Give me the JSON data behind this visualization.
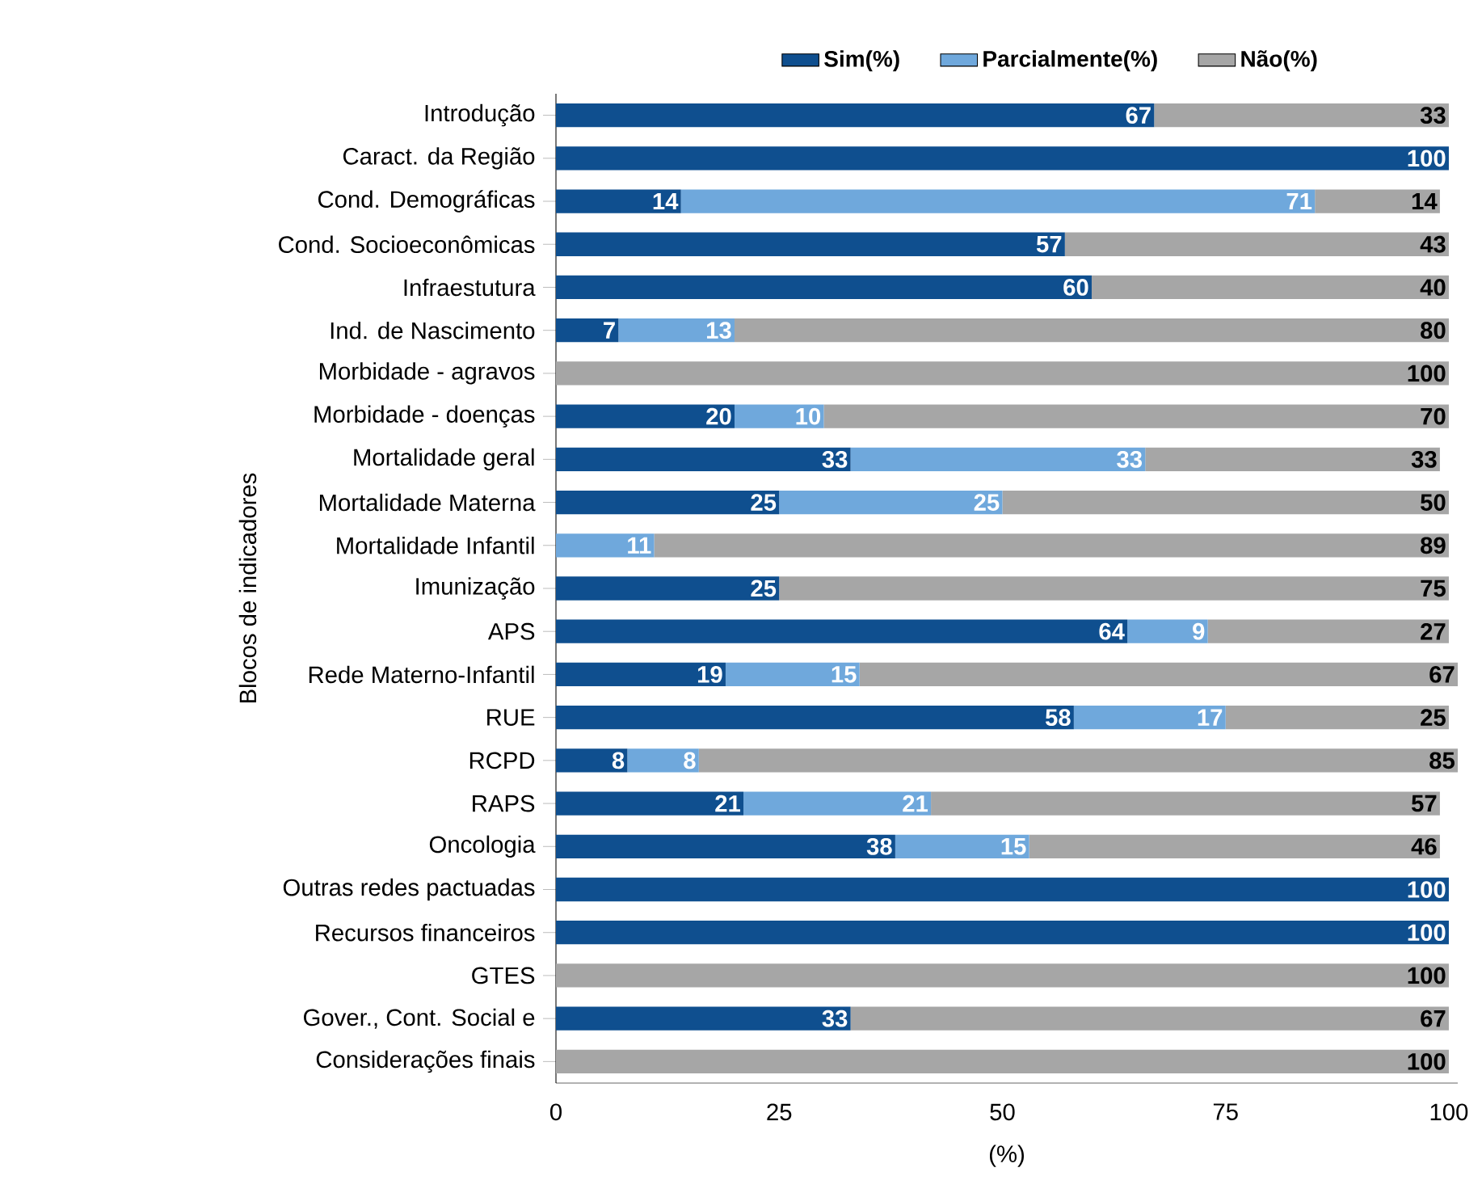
{
  "chart_data": {
    "type": "bar",
    "orientation": "horizontal",
    "stacked": true,
    "xlabel": "(%)",
    "ylabel": "Blocos de indicadores",
    "categories": [
      "Introdução",
      "Caract. da Região",
      "Cond. Demográficas",
      "Cond. Socioeconômicas",
      "Infraestutura",
      "Ind. de Nascimento",
      "Morbidade - agravos",
      "Morbidade - doenças",
      "Mortalidade geral",
      "Mortalidade Materna",
      "Mortalidade Infantil",
      "Imunização",
      "APS",
      "Rede Materno-Infantil",
      "RUE",
      "RCPD",
      "RAPS",
      "Oncologia",
      "Outras redes pactuadas",
      "Recursos financeiros",
      "GTES",
      "Gover., Cont. Social e",
      "Considerações finais"
    ],
    "series": [
      {
        "name": "Sim(%)",
        "color": "#0f4f8f",
        "values": [
          67,
          100,
          14,
          57,
          60,
          7,
          0,
          20,
          33,
          25,
          0,
          25,
          64,
          19,
          58,
          8,
          21,
          38,
          100,
          100,
          0,
          33,
          0
        ],
        "value_labels": [
          "67",
          "100",
          "14",
          "57",
          "60",
          "7",
          null,
          "20",
          "33",
          "25",
          null,
          "25",
          "64",
          "19",
          "58",
          "8",
          "21",
          "38",
          "100",
          "100",
          null,
          "33",
          null
        ]
      },
      {
        "name": "Parcialmente(%)",
        "color": "#6fa8dc",
        "values": [
          0,
          0,
          71,
          0,
          0,
          13,
          0,
          10,
          33,
          25,
          11,
          0,
          9,
          15,
          17,
          8,
          21,
          15,
          0,
          0,
          0,
          0,
          0
        ],
        "value_labels": [
          null,
          null,
          "71",
          null,
          null,
          "13",
          null,
          "10",
          "33",
          "25",
          "11",
          null,
          "9",
          "15",
          "17",
          "8",
          "21",
          "15",
          null,
          null,
          null,
          null,
          null
        ]
      },
      {
        "name": "Não(%)",
        "color": "#a6a6a6",
        "values": [
          33,
          0,
          14,
          43,
          40,
          80,
          100,
          70,
          33,
          50,
          89,
          75,
          27,
          67,
          25,
          85,
          57,
          46,
          0,
          0,
          100,
          67,
          100
        ],
        "value_labels": [
          "33",
          null,
          "14",
          "43",
          "40",
          "80",
          "100",
          "70",
          "33",
          "50",
          "89",
          "75",
          "27",
          "67",
          "25",
          "85",
          "57",
          "46",
          null,
          null,
          "100",
          "67",
          "100"
        ]
      }
    ],
    "xlim": [
      0,
      101
    ],
    "xticks": [
      0,
      25,
      50,
      75,
      100
    ],
    "grid": false,
    "legend": "top"
  }
}
